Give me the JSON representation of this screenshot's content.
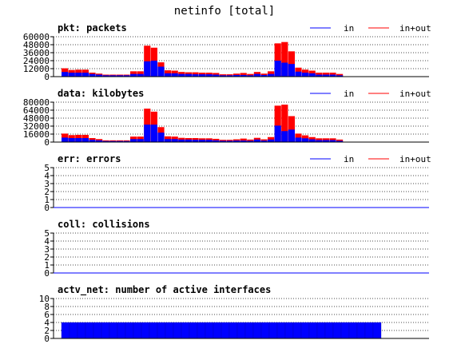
{
  "title": "netinfo [total]",
  "colors": {
    "in": "#0000ff",
    "total": "#ff0000",
    "grid": "#000000",
    "axis": "#000000"
  },
  "chart_data": [
    {
      "type": "bar",
      "title": "pkt: packets",
      "legend": [
        "in",
        "in+out"
      ],
      "ylim": [
        0,
        60000
      ],
      "ticks": [
        "60000",
        "48000",
        "36000",
        "24000",
        "12000",
        "0"
      ],
      "series": [
        {
          "name": "in",
          "values": [
            7000,
            6000,
            6000,
            6000,
            4000,
            3000,
            2000,
            2000,
            2000,
            2000,
            4000,
            4000,
            23000,
            24000,
            15000,
            5000,
            5000,
            4000,
            4000,
            3500,
            3500,
            3500,
            3000,
            2000,
            2000,
            2500,
            2500,
            2000,
            4000,
            2500,
            4000,
            24000,
            21000,
            19000,
            7500,
            6000,
            5000,
            3000,
            3000,
            3000,
            2000,
            0,
            0,
            0,
            0,
            0,
            0
          ]
        },
        {
          "name": "in+out",
          "values": [
            12500,
            10000,
            10500,
            10500,
            6000,
            4500,
            3000,
            3000,
            3000,
            3000,
            8000,
            8000,
            46500,
            43500,
            21500,
            9500,
            9000,
            7000,
            6500,
            6500,
            6000,
            6000,
            5500,
            3500,
            3500,
            4500,
            5500,
            4000,
            7000,
            4500,
            8000,
            50000,
            52000,
            38000,
            13500,
            10500,
            9000,
            6000,
            6000,
            6000,
            4000,
            0,
            0,
            0,
            0,
            0,
            0
          ]
        }
      ]
    },
    {
      "type": "bar",
      "title": "data: kilobytes",
      "legend": [
        "in",
        "in+out"
      ],
      "ylim": [
        0,
        80000
      ],
      "ticks": [
        "80000",
        "64000",
        "48000",
        "32000",
        "16000",
        "0"
      ],
      "series": [
        {
          "name": "in",
          "values": [
            9000,
            8000,
            8000,
            8000,
            4500,
            3500,
            2000,
            2000,
            2000,
            2000,
            6000,
            6000,
            35000,
            35000,
            19000,
            6000,
            6000,
            5000,
            5000,
            4500,
            4500,
            4500,
            3500,
            2500,
            2500,
            3000,
            3000,
            2500,
            5000,
            3000,
            5000,
            33000,
            22000,
            25000,
            9000,
            7500,
            5500,
            4000,
            4000,
            4000,
            2500,
            0,
            0,
            0,
            0,
            0,
            0
          ]
        },
        {
          "name": "in+out",
          "values": [
            17000,
            14000,
            14500,
            14500,
            8000,
            6000,
            3500,
            3500,
            3500,
            3500,
            11000,
            11000,
            67000,
            61000,
            30000,
            11500,
            11000,
            8500,
            8000,
            8000,
            7500,
            7500,
            6500,
            4500,
            4500,
            5500,
            7000,
            5000,
            8500,
            5500,
            10000,
            73000,
            75000,
            52000,
            17000,
            13500,
            10000,
            7500,
            7500,
            7500,
            5000,
            0,
            0,
            0,
            0,
            0,
            0
          ]
        }
      ]
    },
    {
      "type": "bar",
      "title": "err: errors",
      "legend": [
        "in",
        "in+out"
      ],
      "ylim": [
        0,
        5
      ],
      "ticks": [
        "5",
        "4",
        "3",
        "2",
        "1",
        "0"
      ],
      "series": [
        {
          "name": "in",
          "values": []
        },
        {
          "name": "in+out",
          "values": []
        }
      ]
    },
    {
      "type": "bar",
      "title": "coll: collisions",
      "legend": [],
      "ylim": [
        0,
        5
      ],
      "ticks": [
        "5",
        "4",
        "3",
        "2",
        "1",
        "0"
      ],
      "series": []
    },
    {
      "type": "bar",
      "title": "actv_net: number of active interfaces",
      "legend": [],
      "ylim": [
        0,
        10
      ],
      "ticks": [
        "10",
        "8",
        "6",
        "4",
        "2",
        "0"
      ],
      "series": [
        {
          "values": [
            4,
            4,
            4,
            4,
            4,
            4,
            4,
            4,
            4,
            4,
            4,
            4,
            4,
            4,
            4,
            4,
            4,
            4,
            4,
            4,
            4,
            4,
            4,
            4,
            4,
            4,
            4,
            4,
            4,
            4,
            4,
            4,
            4,
            4,
            4,
            4,
            4,
            4,
            4,
            4,
            0,
            0,
            0,
            0,
            0,
            0,
            0
          ]
        }
      ]
    }
  ]
}
